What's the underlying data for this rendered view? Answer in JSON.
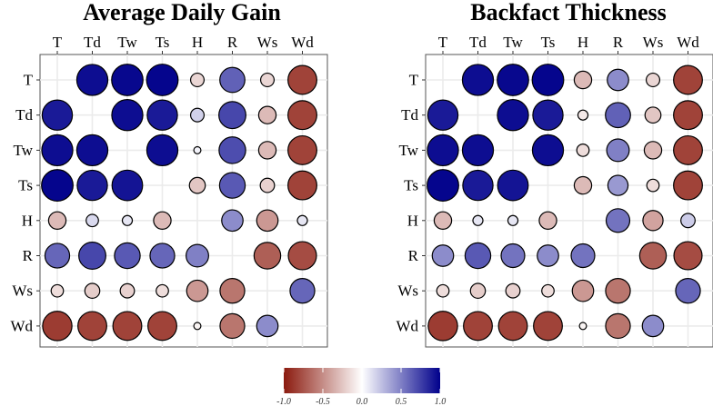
{
  "chart_data": [
    {
      "type": "correlation_dot_matrix",
      "title": "Average Daily Gain",
      "variables": [
        "T",
        "Td",
        "Tw",
        "Ts",
        "H",
        "R",
        "Ws",
        "Wd"
      ],
      "matrix": [
        [
          null,
          0.95,
          0.97,
          0.98,
          -0.18,
          0.62,
          -0.18,
          -0.82
        ],
        [
          0.9,
          null,
          0.95,
          0.9,
          0.18,
          0.72,
          -0.3,
          -0.82
        ],
        [
          0.95,
          0.95,
          null,
          0.95,
          0.05,
          0.7,
          -0.3,
          -0.82
        ],
        [
          0.98,
          0.9,
          0.92,
          null,
          -0.25,
          0.65,
          -0.2,
          -0.82
        ],
        [
          -0.3,
          0.15,
          0.1,
          -0.3,
          null,
          0.45,
          -0.45,
          0.1
        ],
        [
          0.6,
          0.72,
          0.65,
          0.6,
          0.5,
          null,
          -0.7,
          -0.78
        ],
        [
          -0.15,
          -0.22,
          -0.2,
          -0.15,
          -0.45,
          -0.6,
          null,
          0.6
        ],
        [
          -0.85,
          -0.82,
          -0.82,
          -0.82,
          -0.05,
          -0.6,
          0.45,
          null
        ]
      ],
      "xlabel": "",
      "ylabel": ""
    },
    {
      "type": "correlation_dot_matrix",
      "title": "Backfact Thickness",
      "variables": [
        "T",
        "Td",
        "Tw",
        "Ts",
        "H",
        "R",
        "Ws",
        "Wd"
      ],
      "matrix": [
        [
          null,
          0.95,
          0.97,
          0.98,
          -0.3,
          0.45,
          -0.18,
          -0.82
        ],
        [
          0.9,
          null,
          0.95,
          0.9,
          -0.1,
          0.62,
          -0.25,
          -0.82
        ],
        [
          0.95,
          0.95,
          null,
          0.95,
          -0.15,
          0.5,
          -0.3,
          -0.82
        ],
        [
          0.98,
          0.9,
          0.92,
          null,
          -0.3,
          0.4,
          -0.15,
          -0.82
        ],
        [
          -0.3,
          0.1,
          0.1,
          -0.3,
          null,
          0.55,
          -0.4,
          0.2
        ],
        [
          0.45,
          0.65,
          0.55,
          0.45,
          0.55,
          null,
          -0.7,
          -0.78
        ],
        [
          -0.15,
          -0.22,
          -0.2,
          -0.15,
          -0.45,
          -0.6,
          null,
          0.6
        ],
        [
          -0.85,
          -0.82,
          -0.82,
          -0.82,
          -0.05,
          -0.6,
          0.45,
          null
        ]
      ],
      "xlabel": "",
      "ylabel": ""
    }
  ],
  "colorbar": {
    "ticks": [
      "-1.0",
      "-0.5",
      "0.0",
      "0.5",
      "1.0"
    ],
    "range": [
      -1,
      1
    ],
    "low_color": "#8B1A0E",
    "mid_color": "#FFFFFF",
    "high_color": "#00008B"
  },
  "colors": {
    "panel_border": "#555555",
    "grid": "#EBEBEB"
  }
}
